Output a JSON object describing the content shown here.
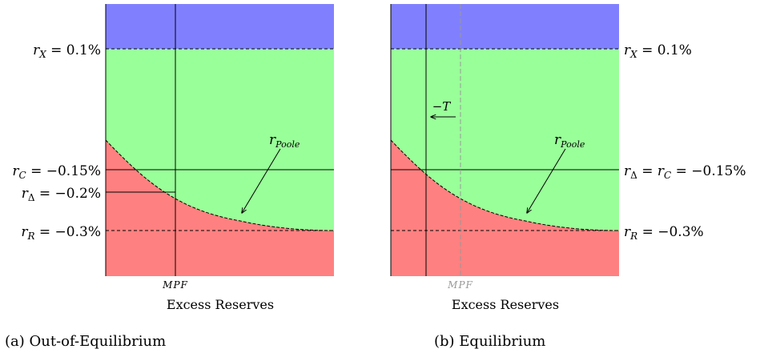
{
  "colors": {
    "above_rx": "#8080ff",
    "corridor": "#99ff99",
    "below_poole": "#ff8080",
    "mpf_faded": "#999999"
  },
  "panel_a": {
    "caption": "(a) Out-of-Equilibrium",
    "xlabel": "Excess Reserves",
    "mpf_label": "MPF",
    "rx_label": {
      "var": "r",
      "sub": "X",
      "rhs": " = 0.1%"
    },
    "rc_label": {
      "var": "r",
      "sub": "C",
      "rhs": " = −0.15%"
    },
    "rdelta_label": {
      "var": "r",
      "sub": "Δ",
      "rhs": " = −0.2%"
    },
    "rr_label": {
      "var": "r",
      "sub": "R",
      "rhs": " = −0.3%"
    },
    "poole_label": {
      "var": "r",
      "sub": "Poole"
    }
  },
  "panel_b": {
    "caption": "(b) Equilibrium",
    "xlabel": "Excess Reserves",
    "mpf_label": "MPF",
    "shift_label": "−T",
    "rx_label": {
      "var": "r",
      "sub": "X",
      "rhs": " = 0.1%"
    },
    "rdc_label": {
      "var": "r",
      "sub": "Δ",
      "mid": " = ",
      "var2": "r",
      "sub2": "C",
      "rhs": " = −0.15%"
    },
    "rr_label": {
      "var": "r",
      "sub": "R",
      "rhs": " = −0.3%"
    },
    "poole_label": {
      "var": "r",
      "sub": "Poole"
    }
  }
}
